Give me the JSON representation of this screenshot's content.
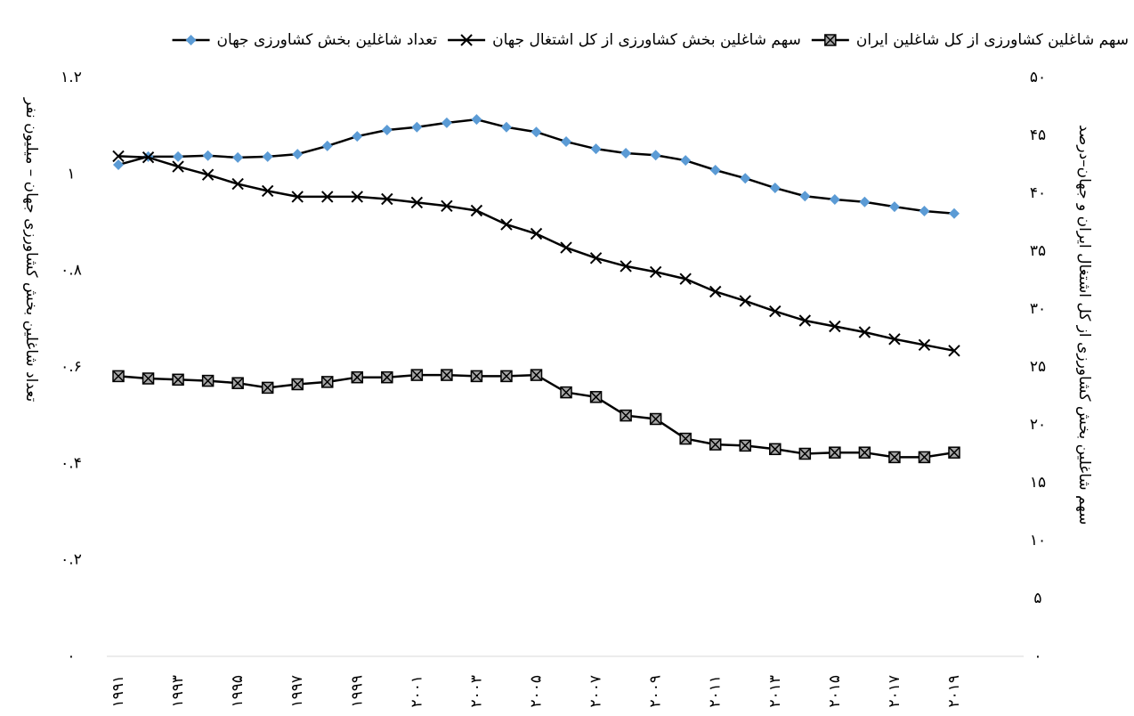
{
  "chart_data": {
    "type": "line",
    "y_label": "تعداد شاغلین بخش کشاورزی جهان – میلیون نفر",
    "y2_label": "سهم شاغلین بخش کشاورزی از کل اشتغال ایران و جهان–درصد",
    "categories": [
      "۱۹۹۱",
      null,
      "۱۹۹۳",
      null,
      "۱۹۹۵",
      null,
      "۱۹۹۷",
      null,
      "۱۹۹۹",
      null,
      "۲۰۰۱",
      null,
      "۲۰۰۳",
      null,
      "۲۰۰۵",
      null,
      "۲۰۰۷",
      null,
      "۲۰۰۹",
      null,
      "۲۰۱۱",
      null,
      "۲۰۱۳",
      null,
      "۲۰۱۵",
      null,
      "۲۰۱۷",
      null,
      "۲۰۱۹"
    ],
    "ylim": [
      0,
      1.2
    ],
    "yticks": [
      {
        "value": 0,
        "label": "۰"
      },
      {
        "value": 0.2,
        "label": "۰.۲"
      },
      {
        "value": 0.4,
        "label": "۰.۴"
      },
      {
        "value": 0.6,
        "label": "۰.۶"
      },
      {
        "value": 0.8,
        "label": "۰.۸"
      },
      {
        "value": 1,
        "label": "۱"
      },
      {
        "value": 1.2,
        "label": "۱.۲"
      }
    ],
    "y2lim": [
      0,
      50
    ],
    "y2ticks": [
      {
        "value": 0,
        "label": "۰"
      },
      {
        "value": 5,
        "label": "۵"
      },
      {
        "value": 10,
        "label": "۱۰"
      },
      {
        "value": 15,
        "label": "۱۵"
      },
      {
        "value": 20,
        "label": "۲۰"
      },
      {
        "value": 25,
        "label": "۲۵"
      },
      {
        "value": 30,
        "label": "۳۰"
      },
      {
        "value": 35,
        "label": "۳۵"
      },
      {
        "value": 40,
        "label": "۴۰"
      },
      {
        "value": 45,
        "label": "۴۵"
      },
      {
        "value": 50,
        "label": "۵۰"
      }
    ],
    "series": [
      {
        "name": "تعداد شاغلین بخش کشاورزی جهان",
        "color": "#5b9bd5",
        "marker": "diamond",
        "axis": "y",
        "values": [
          1.019,
          1.036,
          1.036,
          1.038,
          1.034,
          1.036,
          1.041,
          1.058,
          1.078,
          1.091,
          1.097,
          1.106,
          1.113,
          1.097,
          1.087,
          1.067,
          1.052,
          1.043,
          1.039,
          1.028,
          1.008,
          0.991,
          0.971,
          0.954,
          0.947,
          0.942,
          0.932,
          0.923,
          0.918
        ]
      },
      {
        "name": "سهم شاغلین بخش کشاورزی از کل اشتغال جهان",
        "color": "#000000",
        "marker": "x",
        "axis": "y2",
        "values": [
          43.2,
          43.1,
          42.3,
          41.6,
          40.8,
          40.2,
          39.7,
          39.7,
          39.7,
          39.5,
          39.2,
          38.9,
          38.5,
          37.3,
          36.5,
          35.3,
          34.4,
          33.7,
          33.2,
          32.6,
          31.5,
          30.7,
          29.8,
          29.0,
          28.5,
          28.0,
          27.4,
          26.9,
          26.4
        ]
      },
      {
        "name": "سهم شاغلین کشاورزی از کل شاغلین ایران",
        "color": "#000000",
        "marker": "boxx",
        "axis": "y2",
        "values": [
          24.2,
          24.0,
          23.9,
          23.8,
          23.6,
          23.2,
          23.5,
          23.7,
          24.1,
          24.1,
          24.3,
          24.3,
          24.2,
          24.2,
          24.3,
          22.8,
          22.4,
          20.8,
          20.5,
          18.8,
          18.3,
          18.2,
          17.9,
          17.5,
          17.6,
          17.6,
          17.2,
          17.2,
          17.6
        ]
      }
    ]
  }
}
